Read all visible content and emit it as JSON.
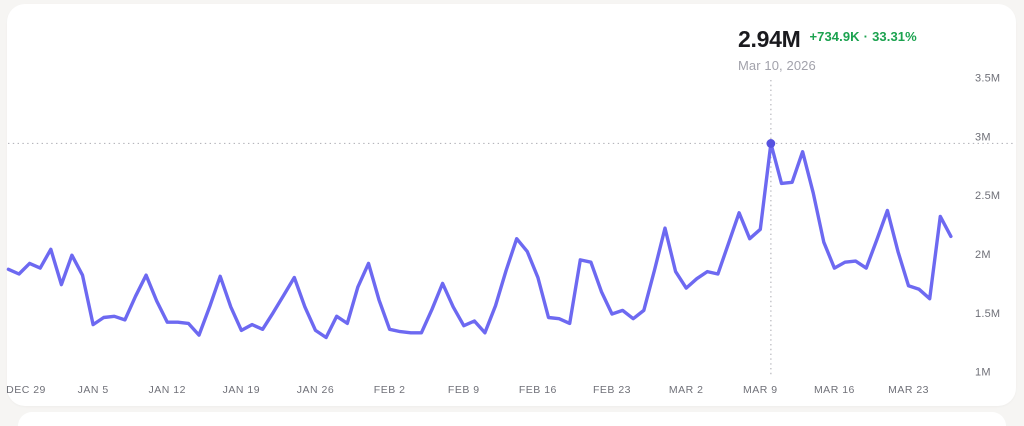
{
  "page": {
    "background": "#f6f5f3"
  },
  "card": {
    "background": "#ffffff"
  },
  "tooltip": {
    "value": "2.94M",
    "change": "+734.9K",
    "separator": "·",
    "change_pct": "33.31%",
    "date": "Mar 10, 2026",
    "value_color": "#1a1a1e",
    "change_color": "#1ba24f",
    "date_color": "#a2a2ab"
  },
  "chart_data": {
    "type": "line",
    "title": "",
    "unit": "M",
    "line_color": "#6d69f1",
    "marker_color": "#5752e0",
    "crosshair_color": "#b6b6bc",
    "axis_label_color": "#6f7078",
    "grid": false,
    "legend": false,
    "ylim": [
      1.0,
      3.6
    ],
    "x": [
      "Dec 28",
      "Dec 29",
      "Dec 30",
      "Dec 31",
      "Jan 1",
      "Jan 2",
      "Jan 3",
      "Jan 4",
      "Jan 5",
      "Jan 6",
      "Jan 7",
      "Jan 8",
      "Jan 9",
      "Jan 10",
      "Jan 11",
      "Jan 12",
      "Jan 13",
      "Jan 14",
      "Jan 15",
      "Jan 16",
      "Jan 17",
      "Jan 18",
      "Jan 19",
      "Jan 20",
      "Jan 21",
      "Jan 22",
      "Jan 23",
      "Jan 24",
      "Jan 25",
      "Jan 26",
      "Jan 27",
      "Jan 28",
      "Jan 29",
      "Jan 30",
      "Jan 31",
      "Feb 1",
      "Feb 2",
      "Feb 3",
      "Feb 4",
      "Feb 5",
      "Feb 6",
      "Feb 7",
      "Feb 8",
      "Feb 9",
      "Feb 10",
      "Feb 11",
      "Feb 12",
      "Feb 13",
      "Feb 14",
      "Feb 15",
      "Feb 16",
      "Feb 17",
      "Feb 18",
      "Feb 19",
      "Feb 20",
      "Feb 21",
      "Feb 22",
      "Feb 23",
      "Feb 24",
      "Feb 25",
      "Feb 26",
      "Feb 27",
      "Feb 28",
      "Mar 1",
      "Mar 2",
      "Mar 3",
      "Mar 4",
      "Mar 5",
      "Mar 6",
      "Mar 7",
      "Mar 8",
      "Mar 9",
      "Mar 10",
      "Mar 11",
      "Mar 12",
      "Mar 13",
      "Mar 14",
      "Mar 15",
      "Mar 16",
      "Mar 17",
      "Mar 18",
      "Mar 19",
      "Mar 20",
      "Mar 21",
      "Mar 22",
      "Mar 23",
      "Mar 24",
      "Mar 25",
      "Mar 26",
      "Mar 27"
    ],
    "values": [
      1.87,
      1.83,
      1.92,
      1.88,
      2.04,
      1.74,
      1.99,
      1.82,
      1.4,
      1.46,
      1.47,
      1.44,
      1.64,
      1.82,
      1.6,
      1.42,
      1.42,
      1.41,
      1.31,
      1.55,
      1.81,
      1.55,
      1.35,
      1.4,
      1.36,
      1.5,
      1.65,
      1.8,
      1.55,
      1.35,
      1.29,
      1.47,
      1.41,
      1.72,
      1.92,
      1.61,
      1.36,
      1.34,
      1.33,
      1.33,
      1.53,
      1.75,
      1.55,
      1.39,
      1.43,
      1.33,
      1.56,
      1.86,
      2.13,
      2.02,
      1.8,
      1.46,
      1.45,
      1.41,
      1.95,
      1.93,
      1.68,
      1.49,
      1.52,
      1.45,
      1.52,
      1.86,
      2.22,
      1.85,
      1.71,
      1.79,
      1.85,
      1.83,
      2.09,
      2.35,
      2.13,
      2.21,
      2.94,
      2.6,
      2.61,
      2.87,
      2.52,
      2.1,
      1.88,
      1.93,
      1.94,
      1.88,
      2.12,
      2.37,
      2.02,
      1.73,
      1.7,
      1.62,
      2.32,
      2.15
    ],
    "selected": {
      "index": 72,
      "date": "Mar 10, 2026",
      "value": 2.94,
      "display": "2.94M",
      "change_abs": "+734.9K",
      "change_pct": "33.31%"
    },
    "y_ticks": [
      {
        "label": "1M",
        "value": 1
      },
      {
        "label": "1.5M",
        "value": 1.5
      },
      {
        "label": "2M",
        "value": 2
      },
      {
        "label": "2.5M",
        "value": 2.5
      },
      {
        "label": "3M",
        "value": 3
      },
      {
        "label": "3.5M",
        "value": 3.5
      }
    ],
    "x_ticks": [
      {
        "label": "DEC 29",
        "index": 1
      },
      {
        "label": "JAN 5",
        "index": 8
      },
      {
        "label": "JAN 12",
        "index": 15
      },
      {
        "label": "JAN 19",
        "index": 22
      },
      {
        "label": "JAN 26",
        "index": 29
      },
      {
        "label": "FEB 2",
        "index": 36
      },
      {
        "label": "FEB 9",
        "index": 43
      },
      {
        "label": "FEB 16",
        "index": 50
      },
      {
        "label": "FEB 23",
        "index": 57
      },
      {
        "label": "MAR 2",
        "index": 64
      },
      {
        "label": "MAR 9",
        "index": 71
      },
      {
        "label": "MAR 16",
        "index": 78
      },
      {
        "label": "MAR 23",
        "index": 85
      }
    ]
  }
}
